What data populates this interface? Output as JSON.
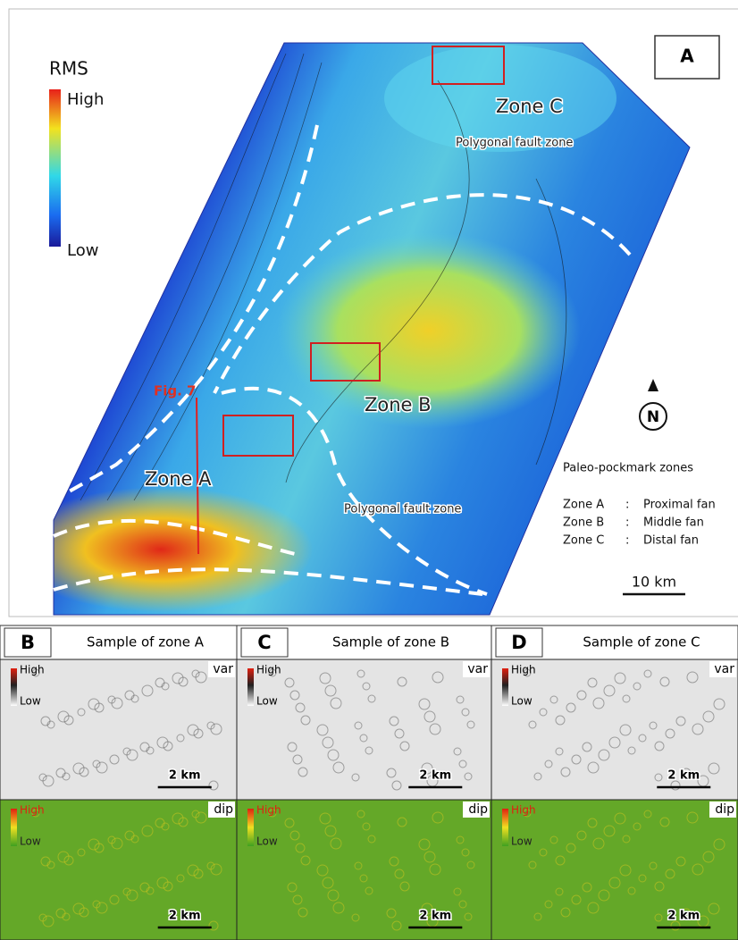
{
  "main_panel": {
    "label": "A",
    "legend": {
      "title": "RMS",
      "high": "High",
      "low": "Low"
    },
    "annotations": [
      "Zone C",
      "Polygonal fault zone",
      "Fig. 7",
      "Zone B",
      "Zone A",
      "Polygonal fault zone"
    ],
    "north": "N",
    "key": {
      "title": "Paleo-pockmark zones",
      "rows": [
        {
          "zone": "Zone A",
          "sep": ":",
          "desc": "Proximal fan"
        },
        {
          "zone": "Zone B",
          "sep": ":",
          "desc": "Middle fan"
        },
        {
          "zone": "Zone C",
          "sep": ":",
          "desc": "Distal fan"
        }
      ]
    },
    "scale_bar": "10 km"
  },
  "sample_panels": [
    {
      "label": "B",
      "title": "Sample of zone A",
      "var": {
        "high": "High",
        "low": "Low",
        "tag": "var",
        "scale": "2 km"
      },
      "dip": {
        "high": "High",
        "low": "Low",
        "tag": "dip",
        "scale": "2 km"
      }
    },
    {
      "label": "C",
      "title": "Sample of zone B",
      "var": {
        "high": "High",
        "low": "Low",
        "tag": "var",
        "scale": "2 km"
      },
      "dip": {
        "high": "High",
        "low": "Low",
        "tag": "dip",
        "scale": "2 km"
      }
    },
    {
      "label": "D",
      "title": "Sample of zone C",
      "var": {
        "high": "High",
        "low": "Low",
        "tag": "var",
        "scale": "2 km"
      },
      "dip": {
        "high": "High",
        "low": "Low",
        "tag": "dip",
        "scale": "2 km"
      }
    }
  ]
}
